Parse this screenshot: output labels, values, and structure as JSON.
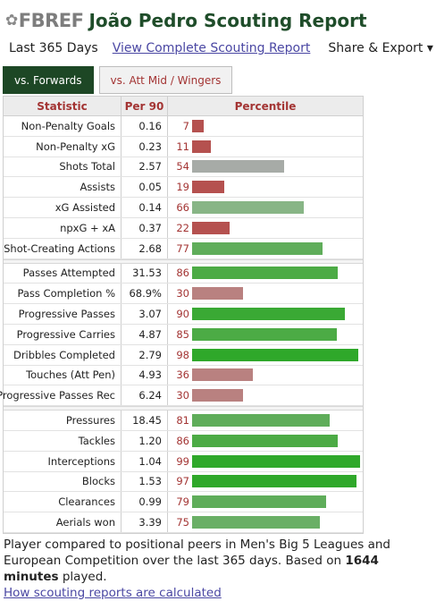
{
  "header": {
    "logo_text": "FBREF",
    "title": "João Pedro Scouting Report",
    "period": "Last 365 Days",
    "complete_report_link": "View Complete Scouting Report",
    "share_label": "Share & Export ▾"
  },
  "tabs": [
    {
      "label": "vs. Forwards",
      "active": true
    },
    {
      "label": "vs. Att Mid / Wingers",
      "active": false
    }
  ],
  "table": {
    "headers": {
      "statistic": "Statistic",
      "per90": "Per 90",
      "percentile": "Percentile"
    },
    "groups": [
      {
        "rows": [
          {
            "stat": "Non-Penalty Goals",
            "per90": "0.16",
            "pct": "7",
            "pct_value": 7,
            "color": "#b5514f"
          },
          {
            "stat": "Non-Penalty xG",
            "per90": "0.23",
            "pct": "11",
            "pct_value": 11,
            "color": "#b5514f"
          },
          {
            "stat": "Shots Total",
            "per90": "2.57",
            "pct": "54",
            "pct_value": 54,
            "color": "#a7aba7"
          },
          {
            "stat": "Assists",
            "per90": "0.05",
            "pct": "19",
            "pct_value": 19,
            "color": "#b5514f"
          },
          {
            "stat": "xG Assisted",
            "per90": "0.14",
            "pct": "66",
            "pct_value": 66,
            "color": "#88b586"
          },
          {
            "stat": "npxG + xA",
            "per90": "0.37",
            "pct": "22",
            "pct_value": 22,
            "color": "#b5514f"
          },
          {
            "stat": "Shot-Creating Actions",
            "per90": "2.68",
            "pct": "77",
            "pct_value": 77,
            "color": "#5fad5a"
          }
        ]
      },
      {
        "rows": [
          {
            "stat": "Passes Attempted",
            "per90": "31.53",
            "pct": "86",
            "pct_value": 86,
            "color": "#4cab45"
          },
          {
            "stat": "Pass Completion %",
            "per90": "68.9%",
            "pct": "30",
            "pct_value": 30,
            "color": "#b98180"
          },
          {
            "stat": "Progressive Passes",
            "per90": "3.07",
            "pct": "90",
            "pct_value": 90,
            "color": "#3aa934"
          },
          {
            "stat": "Progressive Carries",
            "per90": "4.87",
            "pct": "85",
            "pct_value": 85,
            "color": "#4cab45"
          },
          {
            "stat": "Dribbles Completed",
            "per90": "2.79",
            "pct": "98",
            "pct_value": 98,
            "color": "#2fa82a"
          },
          {
            "stat": "Touches (Att Pen)",
            "per90": "4.93",
            "pct": "36",
            "pct_value": 36,
            "color": "#b98180"
          },
          {
            "stat": "Progressive Passes Rec",
            "per90": "6.24",
            "pct": "30",
            "pct_value": 30,
            "color": "#b98180"
          }
        ]
      },
      {
        "rows": [
          {
            "stat": "Pressures",
            "per90": "18.45",
            "pct": "81",
            "pct_value": 81,
            "color": "#5fad5a"
          },
          {
            "stat": "Tackles",
            "per90": "1.20",
            "pct": "86",
            "pct_value": 86,
            "color": "#4cab45"
          },
          {
            "stat": "Interceptions",
            "per90": "1.04",
            "pct": "99",
            "pct_value": 99,
            "color": "#2fa82a"
          },
          {
            "stat": "Blocks",
            "per90": "1.53",
            "pct": "97",
            "pct_value": 97,
            "color": "#2fa82a"
          },
          {
            "stat": "Clearances",
            "per90": "0.99",
            "pct": "79",
            "pct_value": 79,
            "color": "#5fad5a"
          },
          {
            "stat": "Aerials won",
            "per90": "3.39",
            "pct": "75",
            "pct_value": 75,
            "color": "#6aaf66"
          }
        ]
      }
    ]
  },
  "footer": {
    "text_before": "Player compared to positional peers in Men's Big 5 Leagues and European Competition over the last 365 days. Based on ",
    "minutes": "1644 minutes",
    "text_after": " played.",
    "how_link": "How scouting reports are calculated"
  }
}
